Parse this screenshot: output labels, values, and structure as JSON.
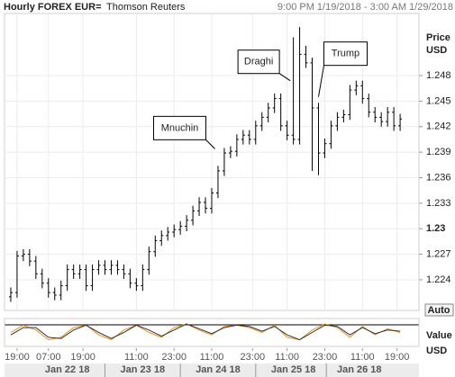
{
  "chart_data": {
    "type": "ohlc",
    "title": "Hourly FOREX EUR=",
    "subtitle": "Thomson Reuters",
    "date_range": "9:00 PM 1/19/2018 - 3:00 AM 1/29/2018",
    "y_label": "Price",
    "y_unit": "USD",
    "color": "#000000",
    "grid": true,
    "xlim": [
      0,
      132
    ],
    "ylim": [
      1.2204,
      1.2553
    ],
    "yticks": [
      1.224,
      1.227,
      1.23,
      1.233,
      1.236,
      1.239,
      1.242,
      1.245,
      1.248
    ],
    "xticks": [
      {
        "value": 4,
        "label": "19:00"
      },
      {
        "value": 14,
        "label": "07:00"
      },
      {
        "value": 25,
        "label": "19:00"
      },
      {
        "value": 42,
        "label": "11:00"
      },
      {
        "value": 54,
        "label": "23:00"
      },
      {
        "value": 66,
        "label": "11:00"
      },
      {
        "value": 79,
        "label": "23:00"
      },
      {
        "value": 90,
        "label": "11:00"
      },
      {
        "value": 102,
        "label": "23:00"
      },
      {
        "value": 114,
        "label": "11:00"
      },
      {
        "value": 125,
        "label": "19:00"
      }
    ],
    "date_ticks": [
      {
        "value": 20,
        "label": "Jan 22 18"
      },
      {
        "value": 44,
        "label": "Jan 23 18"
      },
      {
        "value": 68,
        "label": "Jan 24 18"
      },
      {
        "value": 92,
        "label": "Jan 25 18"
      },
      {
        "value": 113,
        "label": "Jan 26 18"
      }
    ],
    "x": [
      2,
      4,
      6,
      8,
      10,
      12,
      14,
      16,
      18,
      20,
      22,
      24,
      26,
      28,
      30,
      32,
      34,
      36,
      38,
      40,
      42,
      44,
      46,
      48,
      50,
      52,
      54,
      56,
      58,
      60,
      62,
      64,
      66,
      68,
      70,
      72,
      74,
      76,
      78,
      80,
      82,
      84,
      86,
      88,
      90,
      92,
      94,
      96,
      98,
      100,
      102,
      104,
      106,
      108,
      110,
      112,
      114,
      116,
      118,
      120,
      122,
      124,
      126
    ],
    "open": [
      1.222,
      1.2225,
      1.2268,
      1.227,
      1.2262,
      1.2247,
      1.2236,
      1.2225,
      1.2222,
      1.2233,
      1.2252,
      1.2247,
      1.2252,
      1.2233,
      1.2252,
      1.2257,
      1.2252,
      1.2257,
      1.2252,
      1.2247,
      1.2236,
      1.2233,
      1.2252,
      1.2273,
      1.2286,
      1.2292,
      1.2296,
      1.2299,
      1.2303,
      1.231,
      1.2321,
      1.2331,
      1.2324,
      1.2342,
      1.2368,
      1.2389,
      1.2391,
      1.2405,
      1.241,
      1.2405,
      1.2421,
      1.2431,
      1.2442,
      1.2453,
      1.2421,
      1.241,
      1.2405,
      1.2505,
      1.2495,
      1.2442,
      1.2389,
      1.24,
      1.2421,
      1.2431,
      1.2434,
      1.2463,
      1.2468,
      1.2453,
      1.2437,
      1.2431,
      1.2426,
      1.2437,
      1.2421
    ],
    "high": [
      1.2231,
      1.2274,
      1.2276,
      1.2276,
      1.2268,
      1.2253,
      1.2242,
      1.2231,
      1.2239,
      1.2258,
      1.2258,
      1.2258,
      1.2258,
      1.2258,
      1.2263,
      1.2263,
      1.2263,
      1.2263,
      1.2258,
      1.2253,
      1.2242,
      1.2258,
      1.2279,
      1.2292,
      1.2298,
      1.2302,
      1.2305,
      1.2309,
      1.2316,
      1.2327,
      1.2337,
      1.2337,
      1.2348,
      1.2374,
      1.2395,
      1.2397,
      1.2411,
      1.2416,
      1.2416,
      1.2427,
      1.2437,
      1.2448,
      1.2459,
      1.2459,
      1.2427,
      1.2525,
      1.2537,
      1.2515,
      1.2501,
      1.2448,
      1.2406,
      1.2427,
      1.2437,
      1.244,
      1.2469,
      1.2474,
      1.2474,
      1.2459,
      1.2443,
      1.2437,
      1.2443,
      1.2443,
      1.2435
    ],
    "low": [
      1.2214,
      1.2219,
      1.2262,
      1.2256,
      1.2241,
      1.223,
      1.2219,
      1.2216,
      1.2216,
      1.2227,
      1.2241,
      1.2241,
      1.2227,
      1.2227,
      1.2246,
      1.2246,
      1.2246,
      1.2246,
      1.2241,
      1.223,
      1.2227,
      1.2227,
      1.2246,
      1.2267,
      1.228,
      1.2286,
      1.229,
      1.2293,
      1.2297,
      1.2304,
      1.2315,
      1.2318,
      1.2318,
      1.2336,
      1.2362,
      1.2383,
      1.2385,
      1.2399,
      1.2399,
      1.2399,
      1.2415,
      1.2425,
      1.2436,
      1.2415,
      1.2404,
      1.2399,
      1.2399,
      1.2489,
      1.2368,
      1.2363,
      1.2383,
      1.2394,
      1.2415,
      1.2425,
      1.2428,
      1.2457,
      1.2447,
      1.2431,
      1.2425,
      1.242,
      1.242,
      1.2415,
      1.2415
    ],
    "close": [
      1.2225,
      1.2268,
      1.227,
      1.2262,
      1.2247,
      1.2236,
      1.2225,
      1.2222,
      1.2233,
      1.2252,
      1.2247,
      1.2252,
      1.2233,
      1.2252,
      1.2257,
      1.2252,
      1.2257,
      1.2252,
      1.2247,
      1.2236,
      1.2233,
      1.2252,
      1.2273,
      1.2286,
      1.2292,
      1.2296,
      1.2299,
      1.2303,
      1.231,
      1.2321,
      1.2331,
      1.2324,
      1.2342,
      1.2368,
      1.2389,
      1.2391,
      1.2405,
      1.241,
      1.2405,
      1.2421,
      1.2431,
      1.2442,
      1.2453,
      1.2421,
      1.241,
      1.2405,
      1.2505,
      1.2495,
      1.2442,
      1.2389,
      1.24,
      1.2421,
      1.2431,
      1.2434,
      1.2463,
      1.2468,
      1.2453,
      1.2437,
      1.2431,
      1.2426,
      1.2437,
      1.2421,
      1.2429
    ],
    "annotations": [
      {
        "label": "Mnuchin",
        "x": 67,
        "y": 1.2394
      },
      {
        "label": "Draghi",
        "x": 91,
        "y": 1.2474
      },
      {
        "label": "Trump",
        "x": 100,
        "y": 1.2455
      }
    ],
    "auto_button": "Auto",
    "indicator": {
      "label": "Value",
      "unit": "USD",
      "ylim": [
        0,
        100
      ],
      "x": [
        2,
        6,
        10,
        14,
        18,
        22,
        26,
        30,
        34,
        38,
        42,
        46,
        50,
        54,
        58,
        62,
        66,
        70,
        74,
        78,
        82,
        86,
        90,
        94,
        98,
        102,
        106,
        110,
        114,
        118,
        122,
        126
      ],
      "series": [
        {
          "color": "#e8901e",
          "values": [
            50,
            80,
            60,
            20,
            30,
            70,
            80,
            40,
            20,
            60,
            80,
            50,
            30,
            70,
            85,
            60,
            40,
            75,
            80,
            70,
            50,
            80,
            30,
            20,
            60,
            85,
            70,
            30,
            75,
            40,
            65,
            50
          ]
        },
        {
          "color": "#333333",
          "values": [
            40,
            70,
            70,
            30,
            25,
            60,
            80,
            50,
            25,
            50,
            80,
            60,
            35,
            60,
            85,
            65,
            45,
            70,
            80,
            75,
            55,
            75,
            40,
            20,
            50,
            80,
            75,
            40,
            70,
            45,
            60,
            55
          ]
        }
      ]
    }
  }
}
